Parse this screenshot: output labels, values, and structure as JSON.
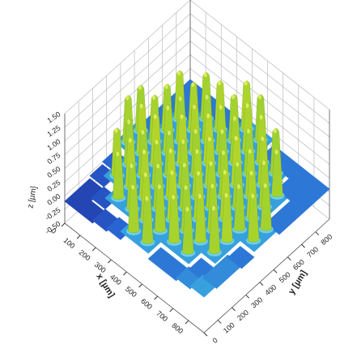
{
  "chart_data": {
    "type": "surface3d",
    "x_label": "x [µm]",
    "y_label": "y [µm]",
    "z_label": "z [µm]",
    "xlim": [
      0,
      900
    ],
    "ylim": [
      0,
      900
    ],
    "zlim": [
      -0.5,
      1.5
    ],
    "xticks": [
      0,
      100,
      200,
      300,
      400,
      500,
      600,
      700,
      800
    ],
    "yticks": [
      0,
      100,
      200,
      300,
      400,
      500,
      600,
      700,
      800
    ],
    "zticks": [
      {
        "value": -0.5,
        "label": "-0.50"
      },
      {
        "value": -0.25,
        "label": "-0.25"
      },
      {
        "value": 0,
        "label": "0.00"
      },
      {
        "value": 0.25,
        "label": "0.25"
      },
      {
        "value": 0.5,
        "label": "0.50"
      },
      {
        "value": 0.75,
        "label": "0.75"
      },
      {
        "value": 1,
        "label": "1.00"
      },
      {
        "value": 1.25,
        "label": "1.25"
      },
      {
        "value": 1.5,
        "label": "1.50"
      }
    ],
    "grid": true,
    "x": [
      45,
      135,
      225,
      315,
      405,
      495,
      585,
      675,
      765,
      855
    ],
    "y": [
      45,
      135,
      225,
      315,
      405,
      495,
      585,
      675,
      765,
      855
    ],
    "z": [
      [
        -0.1,
        -0.1,
        -0.05,
        0.0,
        1.0,
        0.98,
        0.05,
        0.05,
        0.05,
        0.05
      ],
      [
        -0.1,
        -0.05,
        1.02,
        0.97,
        1.05,
        1.0,
        0.99,
        1.03,
        0.05,
        0.05
      ],
      [
        -0.05,
        1.0,
        1.04,
        0.98,
        1.06,
        1.01,
        0.97,
        1.02,
        0.99,
        0.05
      ],
      [
        0.0,
        0.98,
        1.03,
        1.0,
        0.96,
        1.05,
        1.02,
        0.99,
        1.04,
        0.05
      ],
      [
        1.0,
        1.02,
        0.97,
        1.04,
        1.0,
        0.98,
        1.06,
        1.01,
        0.99,
        1.03
      ],
      [
        0.99,
        1.0,
        1.05,
        0.98,
        1.02,
        1.04,
        0.97,
        1.0,
        1.03,
        0.98
      ],
      [
        0.05,
        1.01,
        0.98,
        1.03,
        1.0,
        0.99,
        1.05,
        0.97,
        1.02,
        0.05
      ],
      [
        0.05,
        0.99,
        1.02,
        1.0,
        1.04,
        0.98,
        1.01,
        1.03,
        0.97,
        0.05
      ],
      [
        0.1,
        0.05,
        1.0,
        1.03,
        0.98,
        1.02,
        1.0,
        0.99,
        0.05,
        0.05
      ],
      [
        0.15,
        0.1,
        0.1,
        0.05,
        1.01,
        0.99,
        0.05,
        0.05,
        0.05,
        0.05
      ]
    ]
  }
}
